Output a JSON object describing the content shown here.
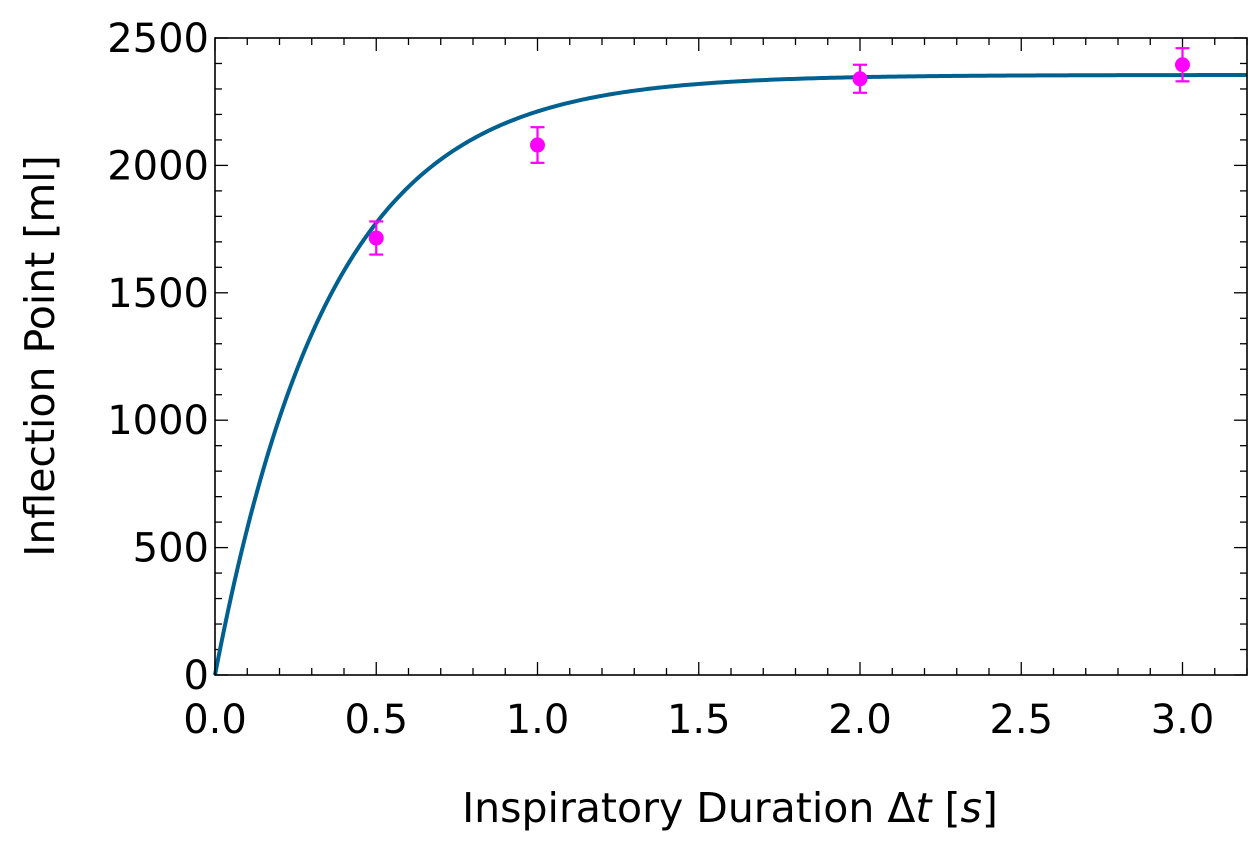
{
  "chart_data": {
    "type": "scatter",
    "xlabel_parts": [
      "Inspiratory Duration ",
      "Δ",
      "t",
      " [",
      "s",
      "]"
    ],
    "ylabel": "Inflection Point [ml]",
    "xlim": [
      0,
      3.2
    ],
    "ylim": [
      0,
      2500
    ],
    "x_ticks": [
      "0.0",
      "0.5",
      "1.0",
      "1.5",
      "2.0",
      "2.5",
      "3.0"
    ],
    "y_ticks": [
      "0",
      "500",
      "1000",
      "1500",
      "2000",
      "2500"
    ],
    "grid": false,
    "legend": "none",
    "points": [
      {
        "x": 0.5,
        "y": 1715,
        "err": 65
      },
      {
        "x": 1.0,
        "y": 2080,
        "err": 70
      },
      {
        "x": 2.0,
        "y": 2340,
        "err": 55
      },
      {
        "x": 3.0,
        "y": 2395,
        "err": 65
      }
    ],
    "fit_curve": {
      "type": "exponential-saturation",
      "asymptote": 2355,
      "rate": 2.8
    },
    "colors": {
      "points": "#ff00ff",
      "curve": "#00608f",
      "axes": "#000000"
    }
  }
}
